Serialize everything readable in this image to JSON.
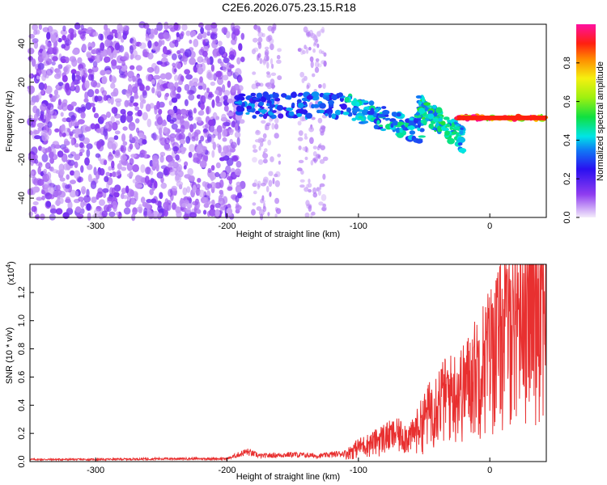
{
  "title": "C2E6.2026.075.23.15.R18",
  "chart_data": [
    {
      "type": "heatmap",
      "name": "spectrogram",
      "xlabel": "Height of straight line (km)",
      "ylabel": "Frequency (Hz)",
      "xlim": [
        -350,
        43
      ],
      "ylim": [
        -50,
        50
      ],
      "xticks": [
        -300,
        -200,
        -100,
        0
      ],
      "xtick_labels": [
        "-300",
        "-200",
        "-100",
        "0"
      ],
      "yticks": [
        -40,
        -20,
        0,
        20,
        40
      ],
      "ytick_labels": [
        "-40",
        "-20",
        "0",
        "20",
        "40"
      ],
      "colorbar": {
        "label": "Normalized spectral amplitude",
        "range": [
          0,
          1
        ],
        "ticks": [
          0.0,
          0.2,
          0.4,
          0.6,
          0.8
        ],
        "tick_labels": [
          "0.0",
          "0.2",
          "0.4",
          "0.6",
          "0.8"
        ]
      },
      "features": [
        {
          "region": "diffuse noise",
          "x_range": [
            -350,
            -190
          ],
          "freq_range": [
            -50,
            50
          ],
          "amplitude": 0.1
        },
        {
          "region": "sparse noise band",
          "x_range": [
            -180,
            -125
          ],
          "freq_range": [
            -50,
            50
          ],
          "amplitude": 0.05
        },
        {
          "region": "signal onset",
          "x_range": [
            -192,
            -110
          ],
          "freq_center": 8,
          "amplitude": 0.35
        },
        {
          "region": "descending signal",
          "x_range": [
            -110,
            -50
          ],
          "freq_start": 8,
          "freq_end": -6,
          "amplitude": 0.45
        },
        {
          "region": "secondary branch",
          "x_range": [
            -55,
            -20
          ],
          "freq_start": 8,
          "freq_end": -10,
          "amplitude": 0.5
        },
        {
          "region": "carrier line",
          "x_range": [
            -25,
            43
          ],
          "freq_center": 1.5,
          "amplitude": 0.95
        }
      ]
    },
    {
      "type": "line",
      "name": "snr",
      "xlabel": "Height of straight line (km)",
      "ylabel": "SNR (10 * v/v)",
      "scale_label": "(x10^4)",
      "scale_base": "(x10",
      "scale_exp": "4",
      "scale_close": ")",
      "xlim": [
        -350,
        43
      ],
      "ylim": [
        0,
        1.4
      ],
      "xticks": [
        -300,
        -200,
        -100,
        0
      ],
      "xtick_labels": [
        "-300",
        "-200",
        "-100",
        "0"
      ],
      "yticks": [
        0.0,
        0.2,
        0.4,
        0.6,
        0.8,
        1.0,
        1.2
      ],
      "ytick_labels": [
        "0.0",
        "0.2",
        "0.4",
        "0.6",
        "0.8",
        "1.0",
        "1.2"
      ],
      "color": "#e83030",
      "x": [
        -350,
        -300,
        -250,
        -200,
        -185,
        -175,
        -150,
        -130,
        -110,
        -100,
        -90,
        -80,
        -70,
        -60,
        -50,
        -40,
        -30,
        -20,
        -10,
        0,
        10,
        20,
        30,
        43
      ],
      "y": [
        0.015,
        0.015,
        0.02,
        0.02,
        0.07,
        0.04,
        0.05,
        0.04,
        0.06,
        0.12,
        0.15,
        0.2,
        0.22,
        0.2,
        0.35,
        0.5,
        0.55,
        0.6,
        0.75,
        0.9,
        1.05,
        1.25,
        1.32,
        1.35
      ]
    }
  ]
}
